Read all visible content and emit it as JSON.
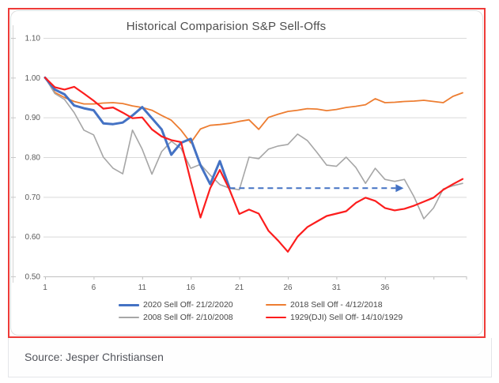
{
  "frame": {
    "border_color": "#ee3b38"
  },
  "source_bar": {
    "text": "Source: Jesper Christiansen"
  },
  "chart_data": {
    "type": "line",
    "title": "Historical Comparision S&P Sell-Offs",
    "xlabel": "",
    "ylabel": "",
    "x_range": [
      1,
      44
    ],
    "ylim": [
      0.5,
      1.1
    ],
    "grid": true,
    "grid_color": "#d9d9d9",
    "axis_color": "#c0c0c0",
    "tick_label_color": "#595959",
    "y_ticks": [
      "1.10",
      "1.00",
      "0.90",
      "0.80",
      "0.70",
      "0.60",
      "0.50"
    ],
    "y_tick_values": [
      1.1,
      1.0,
      0.9,
      0.8,
      0.7,
      0.6,
      0.5
    ],
    "x_ticks": [
      1,
      6,
      11,
      16,
      21,
      26,
      31,
      36
    ],
    "legend_position": "bottom",
    "series": [
      {
        "name": "2020 Sell Off- 21/2/2020",
        "color": "#4472c4",
        "width": 3,
        "z": 3,
        "values": [
          1.0,
          0.97,
          0.958,
          0.93,
          0.923,
          0.918,
          0.885,
          0.883,
          0.887,
          0.905,
          0.926,
          0.898,
          0.87,
          0.806,
          0.836,
          0.846,
          0.78,
          0.732,
          0.79,
          0.722
        ]
      },
      {
        "name": "2018 Sell Off - 4/12/2018",
        "color": "#ed7d31",
        "width": 1.8,
        "z": 1,
        "values": [
          1.0,
          0.963,
          0.95,
          0.94,
          0.934,
          0.934,
          0.936,
          0.937,
          0.935,
          0.929,
          0.925,
          0.918,
          0.905,
          0.893,
          0.868,
          0.836,
          0.871,
          0.88,
          0.882,
          0.885,
          0.89,
          0.894,
          0.87,
          0.9,
          0.908,
          0.915,
          0.918,
          0.922,
          0.921,
          0.917,
          0.92,
          0.925,
          0.928,
          0.932,
          0.947,
          0.937,
          0.938,
          0.94,
          0.941,
          0.943,
          0.94,
          0.937,
          0.953,
          0.962
        ]
      },
      {
        "name": "2008 Sell Off- 2/10/2008",
        "color": "#a6a6a6",
        "width": 1.6,
        "z": 2,
        "values": [
          1.0,
          0.96,
          0.945,
          0.912,
          0.868,
          0.856,
          0.8,
          0.772,
          0.758,
          0.868,
          0.82,
          0.757,
          0.814,
          0.84,
          0.822,
          0.772,
          0.782,
          0.755,
          0.731,
          0.722,
          0.718,
          0.8,
          0.796,
          0.82,
          0.828,
          0.832,
          0.858,
          0.842,
          0.812,
          0.78,
          0.777,
          0.8,
          0.774,
          0.734,
          0.772,
          0.744,
          0.739,
          0.744,
          0.7,
          0.645,
          0.672,
          0.72,
          0.728,
          0.734
        ]
      },
      {
        "name": "1929(DJI) Sell Off- 14/10/1929",
        "color": "#fc1d1d",
        "width": 2.2,
        "z": 4,
        "values": [
          1.0,
          0.976,
          0.97,
          0.977,
          0.96,
          0.942,
          0.922,
          0.925,
          0.912,
          0.898,
          0.9,
          0.87,
          0.852,
          0.843,
          0.838,
          0.74,
          0.648,
          0.722,
          0.768,
          0.718,
          0.657,
          0.668,
          0.658,
          0.615,
          0.59,
          0.562,
          0.6,
          0.624,
          0.638,
          0.652,
          0.658,
          0.664,
          0.685,
          0.698,
          0.69,
          0.672,
          0.666,
          0.67,
          0.678,
          0.688,
          0.698,
          0.718,
          0.732,
          0.745
        ]
      }
    ],
    "annotation": {
      "type": "dashed_arrow",
      "y": 0.722,
      "from_x": 20,
      "to_x": 38,
      "color": "#4472c4"
    }
  }
}
